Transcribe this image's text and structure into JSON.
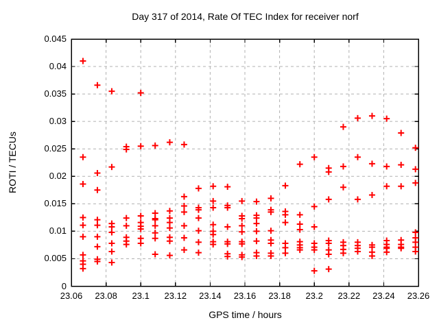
{
  "chart_data": {
    "type": "scatter",
    "title": "Day 317 of 2014, Rate Of TEC Index for receiver norf",
    "xlabel": "GPS time / hours",
    "ylabel": "ROTI / TECUs",
    "xlim": [
      23.06,
      23.26
    ],
    "ylim": [
      0,
      0.045
    ],
    "x_ticks": [
      23.06,
      23.08,
      23.1,
      23.12,
      23.14,
      23.16,
      23.18,
      23.2,
      23.22,
      23.24,
      23.26
    ],
    "x_tick_labels": [
      "23.06",
      "23.08",
      "23.1",
      "23.12",
      "23.14",
      "23.16",
      "23.18",
      "23.2",
      "23.22",
      "23.24",
      "23.26"
    ],
    "y_ticks": [
      0,
      0.005,
      0.01,
      0.015,
      0.02,
      0.025,
      0.03,
      0.035,
      0.04,
      0.045
    ],
    "y_tick_labels": [
      "0",
      "0.005",
      "0.01",
      "0.015",
      "0.02",
      "0.025",
      "0.03",
      "0.035",
      "0.04",
      "0.045"
    ],
    "grid": true,
    "legend": "none",
    "marker": "plus",
    "marker_color": "#ff0000",
    "grid_color": "#b0b0b0",
    "border_color": "#000000",
    "series": [
      {
        "name": "ROTI",
        "points": [
          [
            23.0667,
            0.041
          ],
          [
            23.0667,
            0.0235
          ],
          [
            23.0667,
            0.0186
          ],
          [
            23.0667,
            0.0125
          ],
          [
            23.0667,
            0.0111
          ],
          [
            23.0667,
            0.009
          ],
          [
            23.0667,
            0.0057
          ],
          [
            23.0667,
            0.0046
          ],
          [
            23.0667,
            0.004
          ],
          [
            23.0667,
            0.0032
          ],
          [
            23.075,
            0.0366
          ],
          [
            23.075,
            0.0206
          ],
          [
            23.075,
            0.0175
          ],
          [
            23.075,
            0.0121
          ],
          [
            23.075,
            0.0111
          ],
          [
            23.075,
            0.009
          ],
          [
            23.075,
            0.0072
          ],
          [
            23.075,
            0.0049
          ],
          [
            23.075,
            0.0045
          ],
          [
            23.0833,
            0.0355
          ],
          [
            23.0833,
            0.0217
          ],
          [
            23.0833,
            0.0114
          ],
          [
            23.0833,
            0.0108
          ],
          [
            23.0833,
            0.0098
          ],
          [
            23.0833,
            0.0078
          ],
          [
            23.0833,
            0.0063
          ],
          [
            23.0833,
            0.0043
          ],
          [
            23.0917,
            0.0254
          ],
          [
            23.0917,
            0.0249
          ],
          [
            23.0917,
            0.0124
          ],
          [
            23.0917,
            0.011
          ],
          [
            23.0917,
            0.0089
          ],
          [
            23.0917,
            0.0082
          ],
          [
            23.0917,
            0.0076
          ],
          [
            23.1,
            0.0352
          ],
          [
            23.1,
            0.0255
          ],
          [
            23.1,
            0.0128
          ],
          [
            23.1,
            0.0116
          ],
          [
            23.1,
            0.0109
          ],
          [
            23.1,
            0.0104
          ],
          [
            23.1,
            0.0087
          ],
          [
            23.1,
            0.0078
          ],
          [
            23.1083,
            0.0256
          ],
          [
            23.1083,
            0.0133
          ],
          [
            23.1083,
            0.0123
          ],
          [
            23.1083,
            0.0121
          ],
          [
            23.1083,
            0.011
          ],
          [
            23.1083,
            0.0097
          ],
          [
            23.1083,
            0.0087
          ],
          [
            23.1083,
            0.0058
          ],
          [
            23.1167,
            0.0262
          ],
          [
            23.1167,
            0.0137
          ],
          [
            23.1167,
            0.0124
          ],
          [
            23.1167,
            0.0116
          ],
          [
            23.1167,
            0.0106
          ],
          [
            23.1167,
            0.0089
          ],
          [
            23.1167,
            0.0082
          ],
          [
            23.1167,
            0.0056
          ],
          [
            23.125,
            0.0258
          ],
          [
            23.125,
            0.0163
          ],
          [
            23.125,
            0.0146
          ],
          [
            23.125,
            0.0135
          ],
          [
            23.125,
            0.011
          ],
          [
            23.125,
            0.0088
          ],
          [
            23.125,
            0.0066
          ],
          [
            23.1333,
            0.0178
          ],
          [
            23.1333,
            0.0143
          ],
          [
            23.1333,
            0.0139
          ],
          [
            23.1333,
            0.0124
          ],
          [
            23.1333,
            0.0101
          ],
          [
            23.1333,
            0.008
          ],
          [
            23.1333,
            0.0061
          ],
          [
            23.1417,
            0.0182
          ],
          [
            23.1417,
            0.0155
          ],
          [
            23.1417,
            0.0143
          ],
          [
            23.1417,
            0.0112
          ],
          [
            23.1417,
            0.01
          ],
          [
            23.1417,
            0.0094
          ],
          [
            23.1417,
            0.0081
          ],
          [
            23.1417,
            0.0076
          ],
          [
            23.15,
            0.0181
          ],
          [
            23.15,
            0.0147
          ],
          [
            23.15,
            0.0143
          ],
          [
            23.15,
            0.0108
          ],
          [
            23.15,
            0.0081
          ],
          [
            23.15,
            0.0077
          ],
          [
            23.15,
            0.0059
          ],
          [
            23.15,
            0.0054
          ],
          [
            23.1583,
            0.0155
          ],
          [
            23.1583,
            0.0128
          ],
          [
            23.1583,
            0.0123
          ],
          [
            23.1583,
            0.011
          ],
          [
            23.1583,
            0.0099
          ],
          [
            23.1583,
            0.0081
          ],
          [
            23.1583,
            0.0077
          ],
          [
            23.1583,
            0.0057
          ],
          [
            23.1583,
            0.0053
          ],
          [
            23.1667,
            0.0154
          ],
          [
            23.1667,
            0.0129
          ],
          [
            23.1667,
            0.0124
          ],
          [
            23.1667,
            0.0114
          ],
          [
            23.1667,
            0.01
          ],
          [
            23.1667,
            0.0082
          ],
          [
            23.1667,
            0.0061
          ],
          [
            23.1667,
            0.0055
          ],
          [
            23.175,
            0.016
          ],
          [
            23.175,
            0.0139
          ],
          [
            23.175,
            0.0135
          ],
          [
            23.175,
            0.0101
          ],
          [
            23.175,
            0.0084
          ],
          [
            23.175,
            0.0078
          ],
          [
            23.175,
            0.006
          ],
          [
            23.175,
            0.0055
          ],
          [
            23.1833,
            0.0183
          ],
          [
            23.1833,
            0.0136
          ],
          [
            23.1833,
            0.013
          ],
          [
            23.1833,
            0.0116
          ],
          [
            23.1833,
            0.0078
          ],
          [
            23.1833,
            0.007
          ],
          [
            23.1833,
            0.006
          ],
          [
            23.1917,
            0.0222
          ],
          [
            23.1917,
            0.013
          ],
          [
            23.1917,
            0.0113
          ],
          [
            23.1917,
            0.0103
          ],
          [
            23.1917,
            0.0081
          ],
          [
            23.1917,
            0.0075
          ],
          [
            23.1917,
            0.007
          ],
          [
            23.1917,
            0.0066
          ],
          [
            23.2,
            0.0235
          ],
          [
            23.2,
            0.0145
          ],
          [
            23.2,
            0.0108
          ],
          [
            23.2,
            0.0078
          ],
          [
            23.2,
            0.0071
          ],
          [
            23.2,
            0.0066
          ],
          [
            23.2,
            0.0028
          ],
          [
            23.2083,
            0.0215
          ],
          [
            23.2083,
            0.0208
          ],
          [
            23.2083,
            0.0158
          ],
          [
            23.2083,
            0.0083
          ],
          [
            23.2083,
            0.0078
          ],
          [
            23.2083,
            0.0066
          ],
          [
            23.2083,
            0.0058
          ],
          [
            23.2083,
            0.0031
          ],
          [
            23.2167,
            0.029
          ],
          [
            23.2167,
            0.0218
          ],
          [
            23.2167,
            0.018
          ],
          [
            23.2167,
            0.008
          ],
          [
            23.2167,
            0.0074
          ],
          [
            23.2167,
            0.0067
          ],
          [
            23.2167,
            0.006
          ],
          [
            23.225,
            0.0306
          ],
          [
            23.225,
            0.0235
          ],
          [
            23.225,
            0.0158
          ],
          [
            23.225,
            0.008
          ],
          [
            23.225,
            0.0074
          ],
          [
            23.225,
            0.0069
          ],
          [
            23.225,
            0.0063
          ],
          [
            23.2333,
            0.031
          ],
          [
            23.2333,
            0.0223
          ],
          [
            23.2333,
            0.0166
          ],
          [
            23.2333,
            0.0075
          ],
          [
            23.2333,
            0.0071
          ],
          [
            23.2333,
            0.0062
          ],
          [
            23.2333,
            0.0055
          ],
          [
            23.2417,
            0.0305
          ],
          [
            23.2417,
            0.0218
          ],
          [
            23.2417,
            0.0182
          ],
          [
            23.2417,
            0.0083
          ],
          [
            23.2417,
            0.0076
          ],
          [
            23.2417,
            0.0071
          ],
          [
            23.2417,
            0.0069
          ],
          [
            23.2417,
            0.0062
          ],
          [
            23.25,
            0.0279
          ],
          [
            23.25,
            0.0221
          ],
          [
            23.25,
            0.0182
          ],
          [
            23.25,
            0.0084
          ],
          [
            23.25,
            0.0076
          ],
          [
            23.25,
            0.0071
          ],
          [
            23.25,
            0.0069
          ],
          [
            23.2583,
            0.0252
          ],
          [
            23.2583,
            0.0213
          ],
          [
            23.2583,
            0.0188
          ],
          [
            23.2583,
            0.0098
          ],
          [
            23.2583,
            0.0088
          ],
          [
            23.2583,
            0.008
          ],
          [
            23.2583,
            0.0071
          ],
          [
            23.2583,
            0.0063
          ]
        ]
      }
    ]
  }
}
